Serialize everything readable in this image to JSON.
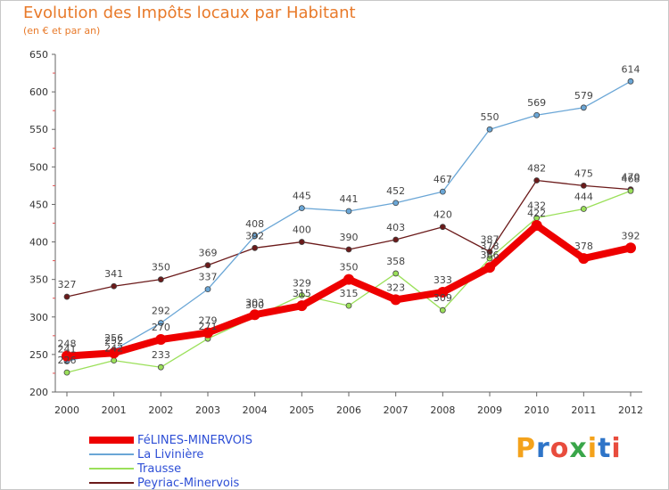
{
  "header": {
    "title": "Evolution des Impôts locaux par Habitant",
    "subtitle": "(en € et par an)"
  },
  "logo": {
    "text": "Proxiti",
    "letter_colors": [
      "#f4a21b",
      "#2e74c8",
      "#e84c3d",
      "#3aa64a",
      "#f4a21b",
      "#2e74c8",
      "#e84c3d"
    ]
  },
  "chart_data": {
    "type": "line",
    "title": "Evolution des Impôts locaux par Habitant",
    "ylabel": "(en € et par an)",
    "xlabel": "",
    "ylim": [
      200,
      650
    ],
    "yticks": [
      200,
      250,
      300,
      350,
      400,
      450,
      500,
      550,
      600,
      650
    ],
    "x": [
      2000,
      2001,
      2002,
      2003,
      2004,
      2005,
      2006,
      2007,
      2008,
      2009,
      2010,
      2011,
      2012
    ],
    "grid": false,
    "legend_position": "bottom-left",
    "series": [
      {
        "name": "Peyriac-Minervois",
        "color": "#6b1a1a",
        "values": [
          327,
          341,
          350,
          369,
          392,
          400,
          390,
          403,
          420,
          387,
          482,
          475,
          470
        ]
      },
      {
        "name": "Trausse",
        "color": "#9be05a",
        "values": [
          226,
          242,
          233,
          271,
          300,
          329,
          315,
          358,
          309,
          378,
          432,
          444,
          468
        ]
      },
      {
        "name": "La Livinière",
        "color": "#6aa6d6",
        "values": [
          241,
          256,
          292,
          337,
          408,
          445,
          441,
          452,
          467,
          550,
          569,
          579,
          614
        ]
      },
      {
        "name": "FéLINES-MINERVOIS",
        "color": "#ee0000",
        "values": [
          248,
          252,
          270,
          279,
          303,
          315,
          350,
          323,
          333,
          366,
          422,
          378,
          392
        ]
      }
    ],
    "legend_order": [
      "FéLINES-MINERVOIS",
      "La Livinière",
      "Trausse",
      "Peyriac-Minervois"
    ]
  }
}
